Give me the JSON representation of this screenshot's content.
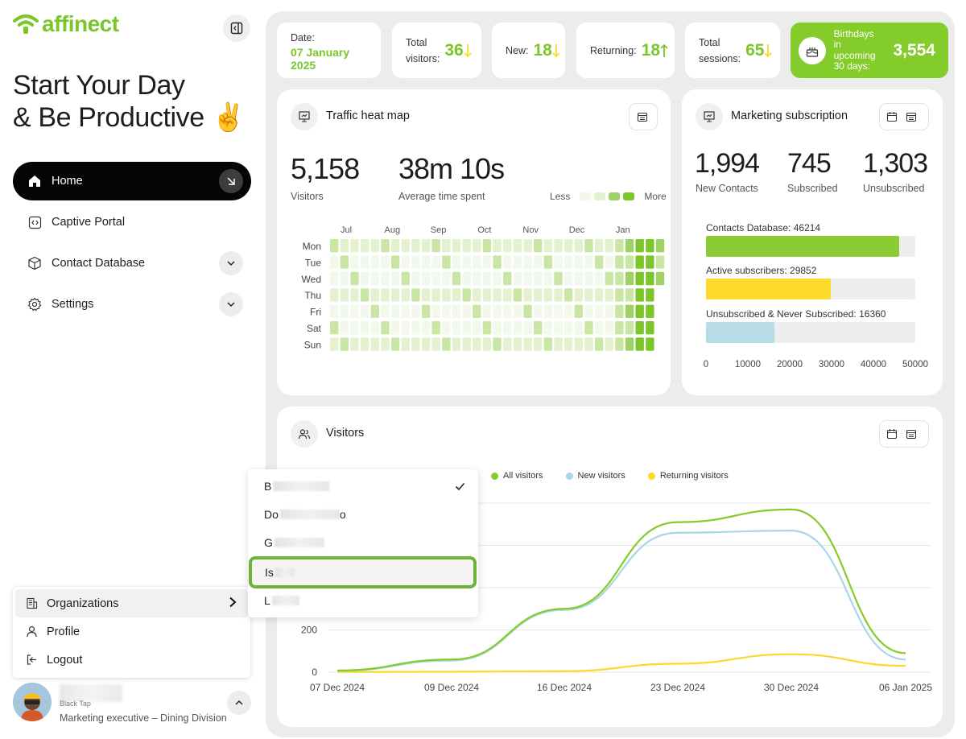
{
  "brand": {
    "name": "affinect",
    "accent": "#7cc52a"
  },
  "greeting": {
    "line1": "Start Your Day",
    "line2": "& Be Productive",
    "emoji": "✌️"
  },
  "nav": {
    "items": [
      {
        "label": "Home",
        "icon": "home-icon",
        "active": true
      },
      {
        "label": "Captive Portal",
        "icon": "code-icon"
      },
      {
        "label": "Contact Database",
        "icon": "cube-icon"
      },
      {
        "label": "Settings",
        "icon": "gear-icon"
      }
    ]
  },
  "user_menu": {
    "items": [
      {
        "label": "Organizations",
        "icon": "building-icon"
      },
      {
        "label": "Profile",
        "icon": "person-icon"
      },
      {
        "label": "Logout",
        "icon": "logout-icon"
      }
    ]
  },
  "user": {
    "subtitle": "Black Tap",
    "role": "Marketing executive – Dining Division"
  },
  "stats": {
    "date_label": "Date:",
    "date_value": "07 January 2025",
    "total_visitors_label_1": "Total",
    "total_visitors_label_2": "visitors:",
    "total_visitors_value": "36",
    "new_label": "New:",
    "new_value": "18",
    "returning_label": "Returning:",
    "returning_value": "18",
    "sessions_label_1": "Total",
    "sessions_label_2": "sessions:",
    "sessions_value": "65",
    "birthdays_label_1": "Birthdays in",
    "birthdays_label_2": "upcoming",
    "birthdays_label_3": "30 days:",
    "birthdays_value": "3,554"
  },
  "heatmap": {
    "title": "Traffic heat map",
    "visitors_value": "5,158",
    "visitors_label": "Visitors",
    "time_value": "38m 10s",
    "time_label": "Average time spent",
    "legend_less": "Less",
    "legend_more": "More",
    "months": [
      "Jul",
      "Aug",
      "Sep",
      "Oct",
      "Nov",
      "Dec",
      "Jan"
    ],
    "days": [
      "Mon",
      "Tue",
      "Wed",
      "Thu",
      "Fri",
      "Sat",
      "Sun"
    ],
    "colors": [
      "#f3f8ec",
      "#e3f1d0",
      "#c9e6a4",
      "#9fd265",
      "#7cc52a"
    ]
  },
  "subscription": {
    "title": "Marketing subscription",
    "new_contacts_value": "1,994",
    "new_contacts_label": "New Contacts",
    "subscribed_value": "745",
    "subscribed_label": "Subscribed",
    "unsubscribed_value": "1,303",
    "unsubscribed_label": "Unsubscribed",
    "bars": [
      {
        "label": "Contacts Database: 46214",
        "value": 46214,
        "color": "#8bcc35"
      },
      {
        "label": "Active subscribers: 29852",
        "value": 29852,
        "color": "#fedb2a"
      },
      {
        "label": "Unsubscribed & Never Subscribed: 16360",
        "value": 16360,
        "color": "#b7dce6"
      }
    ],
    "max": 50000,
    "ticks": [
      "0",
      "10000",
      "20000",
      "30000",
      "40000",
      "50000"
    ]
  },
  "visitors": {
    "title": "Visitors",
    "legend": [
      {
        "label": "All visitors",
        "color": "#84cc2a"
      },
      {
        "label": "New visitors",
        "color": "#a9d6e6"
      },
      {
        "label": "Returning visitors",
        "color": "#fbd92b"
      }
    ]
  },
  "chart_data": {
    "type": "line",
    "x": [
      "07 Dec 2024",
      "09 Dec 2024",
      "16 Dec 2024",
      "23 Dec 2024",
      "30 Dec 2024",
      "06 Jan 2025"
    ],
    "y_ticks_visible": [
      "0",
      "200"
    ],
    "series": [
      {
        "name": "All visitors",
        "values": [
          8,
          60,
          300,
          710,
          770,
          90
        ]
      },
      {
        "name": "New visitors",
        "values": [
          6,
          55,
          295,
          660,
          670,
          60
        ]
      },
      {
        "name": "Returning visitors",
        "values": [
          1,
          2,
          5,
          40,
          85,
          30
        ]
      }
    ],
    "legend_position": "top",
    "grid": true
  },
  "org_dropdown": {
    "items": [
      {
        "label": "B",
        "checked": true
      },
      {
        "label": "Do",
        "suffix": "o"
      },
      {
        "label": "G"
      },
      {
        "label": "Is",
        "selected": true
      },
      {
        "label": "L"
      }
    ]
  }
}
